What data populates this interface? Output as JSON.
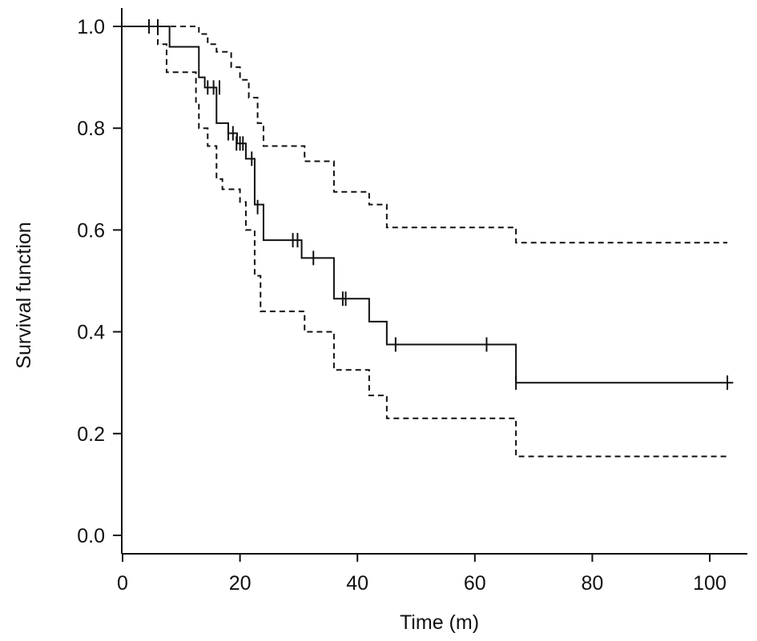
{
  "chart_data": {
    "type": "line",
    "title": "",
    "xlabel": "Time (m)",
    "ylabel": "Survival function",
    "xlim": [
      0,
      107
    ],
    "ylim": [
      -0.04,
      1.03
    ],
    "x_ticks": [
      0,
      20,
      40,
      60,
      80,
      100
    ],
    "y_ticks": [
      0.0,
      0.2,
      0.4,
      0.6,
      0.8,
      1.0
    ],
    "x_tick_labels": [
      "0",
      "20",
      "40",
      "60",
      "80",
      "100"
    ],
    "y_tick_labels": [
      "0.0",
      "0.2",
      "0.4",
      "0.6",
      "0.8",
      "1.0"
    ],
    "grid": false,
    "legend": "none",
    "series": [
      {
        "style": "solid",
        "steps": [
          [
            0,
            1.0
          ],
          [
            8,
            0.96
          ],
          [
            13,
            0.9
          ],
          [
            14,
            0.88
          ],
          [
            16,
            0.81
          ],
          [
            18,
            0.79
          ],
          [
            19.5,
            0.77
          ],
          [
            21,
            0.74
          ],
          [
            22.5,
            0.65
          ],
          [
            24,
            0.58
          ],
          [
            30.5,
            0.545
          ],
          [
            36,
            0.465
          ],
          [
            42,
            0.42
          ],
          [
            45,
            0.375
          ],
          [
            67,
            0.3
          ],
          [
            104,
            0.3
          ]
        ],
        "censored": [
          [
            4.5,
            1.0
          ],
          [
            6,
            1.0
          ],
          [
            14.5,
            0.88
          ],
          [
            15.5,
            0.88
          ],
          [
            16.5,
            0.88
          ],
          [
            18,
            0.79
          ],
          [
            18.8,
            0.79
          ],
          [
            19.4,
            0.77
          ],
          [
            20,
            0.77
          ],
          [
            20.5,
            0.77
          ],
          [
            22,
            0.74
          ],
          [
            23,
            0.645
          ],
          [
            29,
            0.58
          ],
          [
            29.8,
            0.58
          ],
          [
            32.5,
            0.545
          ],
          [
            37.5,
            0.465
          ],
          [
            38,
            0.465
          ],
          [
            46.5,
            0.375
          ],
          [
            62,
            0.375
          ],
          [
            67,
            0.3
          ],
          [
            103,
            0.3
          ]
        ]
      },
      {
        "style": "dashed",
        "steps": [
          [
            0,
            1.0
          ],
          [
            13,
            0.985
          ],
          [
            14.5,
            0.965
          ],
          [
            16,
            0.95
          ],
          [
            18.5,
            0.92
          ],
          [
            20,
            0.895
          ],
          [
            21.5,
            0.86
          ],
          [
            23,
            0.81
          ],
          [
            24,
            0.765
          ],
          [
            31,
            0.735
          ],
          [
            36,
            0.675
          ],
          [
            42,
            0.65
          ],
          [
            45,
            0.605
          ],
          [
            67,
            0.575
          ],
          [
            103,
            0.575
          ]
        ]
      },
      {
        "style": "dashed",
        "steps": [
          [
            0,
            1.0
          ],
          [
            6,
            0.965
          ],
          [
            7.5,
            0.91
          ],
          [
            12.5,
            0.85
          ],
          [
            13,
            0.8
          ],
          [
            14.5,
            0.765
          ],
          [
            16,
            0.7
          ],
          [
            17,
            0.68
          ],
          [
            20,
            0.655
          ],
          [
            21,
            0.6
          ],
          [
            22.5,
            0.51
          ],
          [
            23.5,
            0.44
          ],
          [
            31,
            0.4
          ],
          [
            36,
            0.325
          ],
          [
            42,
            0.275
          ],
          [
            45,
            0.23
          ],
          [
            67,
            0.155
          ],
          [
            103,
            0.155
          ]
        ]
      }
    ]
  }
}
